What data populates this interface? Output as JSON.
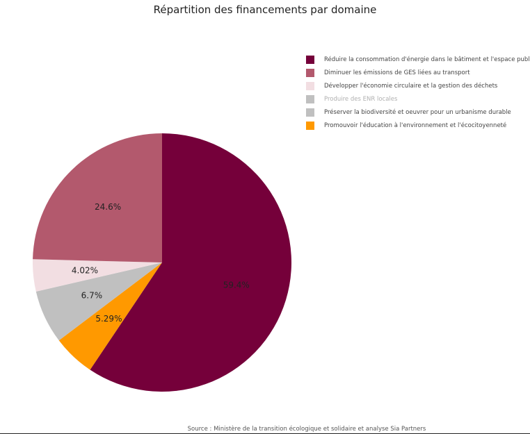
{
  "chart_data": {
    "type": "pie",
    "title": "Répartition des financements par domaine",
    "slices": [
      {
        "name": "Réduire la consommation d'énergie dans le bâtiment et l'espace public",
        "value": 59.4,
        "label": "59.4%",
        "color": "#75003A"
      },
      {
        "name": "Promouvoir l'éducation à l'environnement et l'écocitoyenneté",
        "value": 5.29,
        "label": "5.29%",
        "color": "#FF9900"
      },
      {
        "name": "Préserver la biodiversité et oeuvrer pour un urbanisme durable",
        "value": 6.7,
        "label": "6.7%",
        "color": "#C0C0C0"
      },
      {
        "name": "Développer l'économie circulaire et la gestion des déchets",
        "value": 4.02,
        "label": "4.02%",
        "color": "#F2DEE2"
      },
      {
        "name": "Diminuer les émissions de GES liées au transport",
        "value": 24.6,
        "label": "24.6%",
        "color": "#B3596D"
      }
    ],
    "legend": {
      "placement": "top-right",
      "entries": [
        {
          "label": "Réduire la consommation d'énergie dans le bâtiment et l'espace public",
          "color": "#75003A",
          "muted": false
        },
        {
          "label": "Diminuer les émissions de GES liées au transport",
          "color": "#B3596D",
          "muted": false
        },
        {
          "label": "Développer l'économie circulaire et la gestion des déchets",
          "color": "#F2DEE2",
          "muted": false
        },
        {
          "label": "Produire des ENR locales",
          "color": "#C0C0C0",
          "muted": true
        },
        {
          "label": "Préserver la biodiversité et oeuvrer pour un urbanisme durable",
          "color": "#C0C0C0",
          "muted": false
        },
        {
          "label": "Promouvoir l'éducation à l'environnement et l'écocitoyenneté",
          "color": "#FF9900",
          "muted": false
        }
      ]
    },
    "source": "Source : Ministère de la transition écologique et solidaire et analyse Sia Partners"
  }
}
